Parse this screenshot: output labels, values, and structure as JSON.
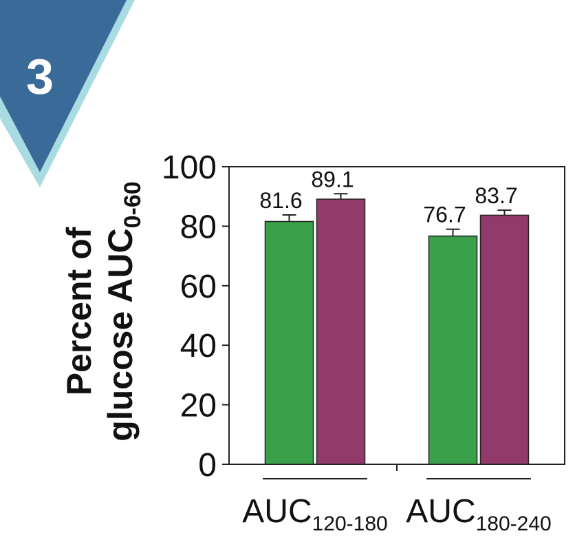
{
  "badge": {
    "label": "3",
    "fill_color": "#3a6a98",
    "border_color": "#a9dbe3"
  },
  "chart_data": {
    "type": "bar",
    "title": "",
    "ylabel": {
      "line1": "Percent of",
      "line2_main": "glucose AUC",
      "line2_sub": "0-60"
    },
    "ylim": [
      0,
      100
    ],
    "yticks": [
      "0",
      "20",
      "40",
      "60",
      "80",
      "100"
    ],
    "categories": [
      {
        "main": "AUC",
        "sub": "120-180"
      },
      {
        "main": "AUC",
        "sub": "180-240"
      }
    ],
    "series": [
      {
        "color": "#3aa14a",
        "values": [
          81.6,
          76.7
        ],
        "errors": [
          2.2,
          2.3
        ],
        "labels": [
          "81.6",
          "76.7"
        ]
      },
      {
        "color": "#923a6a",
        "values": [
          89.1,
          83.7
        ],
        "errors": [
          1.8,
          1.7
        ],
        "labels": [
          "89.1",
          "83.7"
        ]
      }
    ],
    "grid": false,
    "legend": "none"
  }
}
